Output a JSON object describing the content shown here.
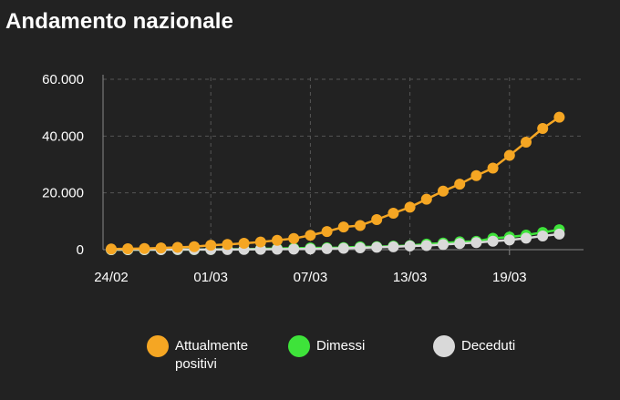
{
  "window": {
    "title": "Andamento nazionale"
  },
  "colors": {
    "background": "#222222",
    "grid": "#555555",
    "axis": "#888888",
    "attualmente_positivi": "#f5a623",
    "dimessi": "#3ee33a",
    "deceduti": "#d9d9d9"
  },
  "legend": [
    {
      "label_line1": "Attualmente",
      "label_line2": "positivi",
      "color": "#f5a623"
    },
    {
      "label_line1": "Dimessi",
      "label_line2": "",
      "color": "#3ee33a"
    },
    {
      "label_line1": "Deceduti",
      "label_line2": "",
      "color": "#d9d9d9"
    }
  ],
  "chart_data": {
    "type": "line",
    "title": "Andamento nazionale",
    "xlabel": "",
    "ylabel": "",
    "x": [
      "24/02",
      "25/02",
      "26/02",
      "27/02",
      "28/02",
      "29/02",
      "01/03",
      "02/03",
      "03/03",
      "04/03",
      "05/03",
      "06/03",
      "07/03",
      "08/03",
      "09/03",
      "10/03",
      "11/03",
      "12/03",
      "13/03",
      "14/03",
      "15/03",
      "16/03",
      "17/03",
      "18/03",
      "19/03",
      "20/03",
      "21/03",
      "22/03"
    ],
    "x_tick_labels": [
      "24/02",
      "01/03",
      "07/03",
      "13/03",
      "19/03"
    ],
    "y_tick_labels": [
      "0",
      "20.000",
      "40.000",
      "60.000"
    ],
    "y_ticks": [
      0,
      20000,
      40000,
      60000
    ],
    "ylim": [
      0,
      60000
    ],
    "grid": true,
    "legend_position": "bottom",
    "series": [
      {
        "name": "Attualmente positivi",
        "color": "#f5a623",
        "values": [
          221,
          311,
          385,
          588,
          821,
          1049,
          1577,
          1835,
          2263,
          2706,
          3296,
          3916,
          5061,
          6387,
          7985,
          8514,
          10590,
          12839,
          14955,
          17750,
          20603,
          23073,
          26062,
          28710,
          33190,
          37860,
          42681,
          46638
        ]
      },
      {
        "name": "Dimessi",
        "color": "#3ee33a",
        "values": [
          1,
          1,
          3,
          45,
          46,
          50,
          83,
          149,
          160,
          276,
          414,
          523,
          589,
          622,
          724,
          1004,
          1045,
          1258,
          1439,
          1966,
          2335,
          2749,
          2941,
          4025,
          4440,
          5129,
          6072,
          7024
        ]
      },
      {
        "name": "Deceduti",
        "color": "#d9d9d9",
        "values": [
          7,
          10,
          12,
          17,
          21,
          29,
          34,
          52,
          79,
          107,
          148,
          197,
          233,
          366,
          463,
          631,
          827,
          1016,
          1266,
          1441,
          1809,
          2158,
          2503,
          2978,
          3405,
          4032,
          4825,
          5476
        ]
      }
    ]
  }
}
